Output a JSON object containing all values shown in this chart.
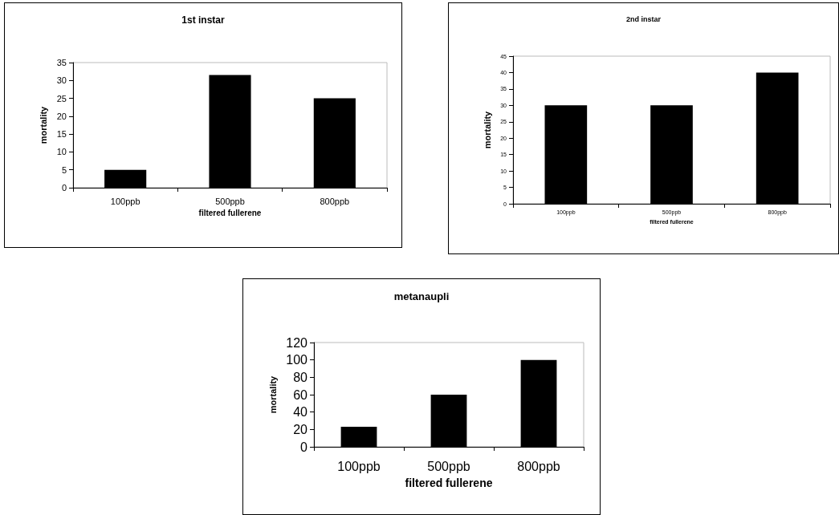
{
  "chart_data": [
    {
      "type": "bar",
      "title": "1st instar",
      "xlabel": "filtered fullerene",
      "ylabel": "mortality",
      "categories": [
        "100ppb",
        "500ppb",
        "800ppb"
      ],
      "values": [
        5,
        31.5,
        25
      ],
      "color": "#000000",
      "ylim": [
        0,
        35
      ],
      "yticks": [
        0,
        5,
        10,
        15,
        20,
        25,
        30,
        35
      ]
    },
    {
      "type": "bar",
      "title": "2nd instar",
      "xlabel": "filtered fullerene",
      "ylabel": "mortality",
      "categories": [
        "100ppb",
        "500ppb",
        "800ppb"
      ],
      "values": [
        30,
        30,
        40
      ],
      "color": "#000000",
      "ylim": [
        0,
        45
      ],
      "yticks": [
        0,
        5,
        10,
        15,
        20,
        25,
        30,
        35,
        40,
        45
      ]
    },
    {
      "type": "bar",
      "title": "metanaupli",
      "xlabel": "filtered fullerene",
      "ylabel": "mortality",
      "categories": [
        "100ppb",
        "500ppb",
        "800ppb"
      ],
      "values": [
        23,
        60,
        100
      ],
      "color": "#000000",
      "ylim": [
        0,
        120
      ],
      "yticks": [
        0,
        20,
        40,
        60,
        80,
        100,
        120
      ]
    }
  ]
}
